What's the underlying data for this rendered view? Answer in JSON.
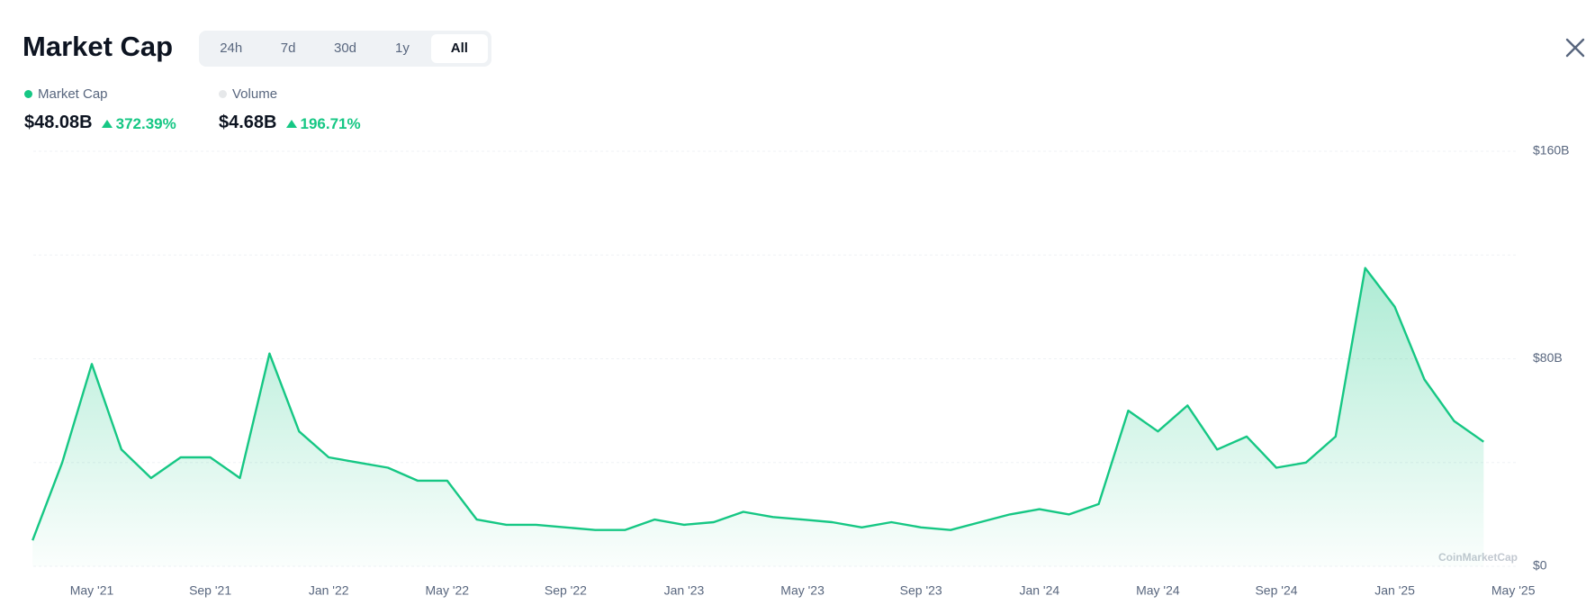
{
  "header": {
    "title": "Market Cap",
    "tabs": [
      "24h",
      "7d",
      "30d",
      "1y",
      "All"
    ],
    "active_tab": 4
  },
  "legend": [
    {
      "label": "Market Cap",
      "value": "$48.08B",
      "change": "372.39%",
      "color": "#16c784"
    },
    {
      "label": "Volume",
      "value": "$4.68B",
      "change": "196.71%",
      "color": "#e6e8ea"
    }
  ],
  "watermark": "CoinMarketCap",
  "chart_data": {
    "type": "area",
    "color": "#16c784",
    "x": [
      "2021-03",
      "2021-04",
      "2021-05",
      "2021-06",
      "2021-07",
      "2021-08",
      "2021-09",
      "2021-10",
      "2021-11",
      "2021-12",
      "2022-01",
      "2022-02",
      "2022-03",
      "2022-04",
      "2022-05",
      "2022-06",
      "2022-07",
      "2022-08",
      "2022-09",
      "2022-10",
      "2022-11",
      "2022-12",
      "2023-01",
      "2023-02",
      "2023-03",
      "2023-04",
      "2023-05",
      "2023-06",
      "2023-07",
      "2023-08",
      "2023-09",
      "2023-10",
      "2023-11",
      "2023-12",
      "2024-01",
      "2024-02",
      "2024-03",
      "2024-04",
      "2024-05",
      "2024-06",
      "2024-07",
      "2024-08",
      "2024-09",
      "2024-10",
      "2024-11",
      "2024-12",
      "2025-01",
      "2025-02",
      "2025-03",
      "2025-04"
    ],
    "values": [
      10,
      40,
      78,
      45,
      34,
      42,
      42,
      34,
      82,
      52,
      42,
      40,
      38,
      33,
      33,
      18,
      16,
      16,
      15,
      14,
      14,
      18,
      16,
      17,
      21,
      19,
      18,
      17,
      15,
      17,
      15,
      14,
      17,
      20,
      22,
      20,
      24,
      60,
      52,
      62,
      45,
      50,
      38,
      40,
      50,
      115,
      100,
      72,
      56,
      48
    ],
    "ylim": [
      0,
      160
    ],
    "yticks": [
      {
        "value": 0,
        "label": "$0"
      },
      {
        "value": 80,
        "label": "$80B"
      },
      {
        "value": 160,
        "label": "$160B"
      }
    ],
    "minor_grid": [
      40,
      120
    ],
    "xticks": [
      {
        "value": "2021-05",
        "label": "May '21"
      },
      {
        "value": "2021-09",
        "label": "Sep '21"
      },
      {
        "value": "2022-01",
        "label": "Jan '22"
      },
      {
        "value": "2022-05",
        "label": "May '22"
      },
      {
        "value": "2022-09",
        "label": "Sep '22"
      },
      {
        "value": "2023-01",
        "label": "Jan '23"
      },
      {
        "value": "2023-05",
        "label": "May '23"
      },
      {
        "value": "2023-09",
        "label": "Sep '23"
      },
      {
        "value": "2024-01",
        "label": "Jan '24"
      },
      {
        "value": "2024-05",
        "label": "May '24"
      },
      {
        "value": "2024-09",
        "label": "Sep '24"
      },
      {
        "value": "2025-01",
        "label": "Jan '25"
      },
      {
        "value": "2025-05",
        "label": "May '25"
      }
    ],
    "grid": true
  }
}
